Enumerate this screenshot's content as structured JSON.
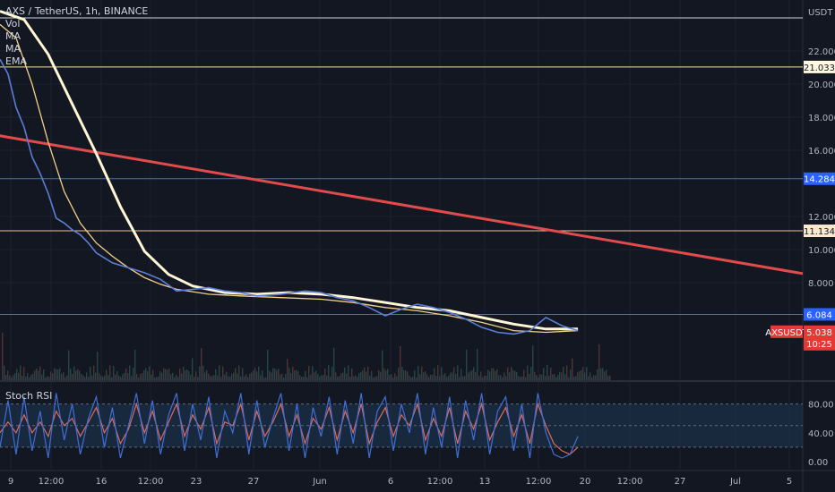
{
  "header": {
    "symbol_title": "AXS / TetherUS, 1h, BINANCE",
    "indicators": [
      "Vol",
      "MA",
      "MA",
      "EMA"
    ],
    "currency": "USDT"
  },
  "lower_pane": {
    "title": "Stoch RSI"
  },
  "colors": {
    "background": "#131722",
    "grid": "#1e222d",
    "price": "#5b7fd6",
    "ma_fast": "#f5d08a",
    "ma_slow": "#fff6d6",
    "trendline": "#e24b4b",
    "stoch_k": "#3f6fd6",
    "stoch_d": "#e06a5a",
    "level_white": "#cfd3dc",
    "level_yellow": "#f5e3a0",
    "level_blue": "#3a6df0",
    "level_peach": "#f0c08a"
  },
  "chart_data": {
    "type": "line",
    "symbol": "AXSUSDT",
    "exchange": "BINANCE",
    "interval": "1h",
    "y_axis": {
      "ticks": [
        "22.000",
        "20.000",
        "18.000",
        "16.000",
        "12.000",
        "10.000",
        "8.000"
      ],
      "tick_values": [
        22,
        20,
        18,
        16,
        12,
        10,
        8
      ]
    },
    "x_axis": {
      "ticks": [
        "9",
        "12:00",
        "16",
        "12:00",
        "23",
        "27",
        "Jun",
        "6",
        "12:00",
        "13",
        "12:00",
        "20",
        "12:00",
        "27",
        "Jul",
        "5"
      ]
    },
    "horizontal_levels": [
      {
        "label": "21.033",
        "value": 21.033,
        "style": "yellow"
      },
      {
        "label": "14.284",
        "value": 14.284,
        "style": "blue"
      },
      {
        "label": "11.134",
        "value": 11.134,
        "style": "peach"
      },
      {
        "label": "6.084",
        "value": 6.084,
        "style": "blue"
      }
    ],
    "top_level_value": 24.0,
    "current_price": {
      "label": "AXSUSDT",
      "value": "5.038",
      "countdown": "10:25",
      "numeric": 5.038
    },
    "trendline": {
      "from": [
        -1,
        25.2
      ],
      "to": [
        1.0,
        8.55
      ]
    },
    "price_series": [
      [
        0.0,
        21.5
      ],
      [
        0.01,
        20.6
      ],
      [
        0.02,
        18.6
      ],
      [
        0.03,
        17.4
      ],
      [
        0.04,
        15.6
      ],
      [
        0.05,
        14.6
      ],
      [
        0.06,
        13.4
      ],
      [
        0.07,
        11.9
      ],
      [
        0.08,
        11.6
      ],
      [
        0.09,
        11.2
      ],
      [
        0.1,
        10.9
      ],
      [
        0.11,
        10.4
      ],
      [
        0.12,
        9.8
      ],
      [
        0.13,
        9.5
      ],
      [
        0.14,
        9.2
      ],
      [
        0.16,
        8.9
      ],
      [
        0.18,
        8.6
      ],
      [
        0.2,
        8.2
      ],
      [
        0.22,
        7.5
      ],
      [
        0.24,
        7.6
      ],
      [
        0.26,
        7.7
      ],
      [
        0.28,
        7.5
      ],
      [
        0.3,
        7.4
      ],
      [
        0.32,
        7.2
      ],
      [
        0.35,
        7.3
      ],
      [
        0.38,
        7.5
      ],
      [
        0.4,
        7.4
      ],
      [
        0.42,
        7.1
      ],
      [
        0.44,
        6.9
      ],
      [
        0.46,
        6.5
      ],
      [
        0.48,
        6.0
      ],
      [
        0.5,
        6.4
      ],
      [
        0.52,
        6.7
      ],
      [
        0.54,
        6.5
      ],
      [
        0.56,
        6.2
      ],
      [
        0.58,
        5.8
      ],
      [
        0.6,
        5.3
      ],
      [
        0.62,
        5.0
      ],
      [
        0.64,
        4.9
      ],
      [
        0.66,
        5.1
      ],
      [
        0.68,
        5.9
      ],
      [
        0.7,
        5.4
      ],
      [
        0.72,
        5.1
      ]
    ],
    "ma_fast_series": [
      [
        0.0,
        23.6
      ],
      [
        0.02,
        22.8
      ],
      [
        0.04,
        20.0
      ],
      [
        0.06,
        16.5
      ],
      [
        0.08,
        13.5
      ],
      [
        0.1,
        11.6
      ],
      [
        0.12,
        10.4
      ],
      [
        0.14,
        9.6
      ],
      [
        0.16,
        8.9
      ],
      [
        0.18,
        8.3
      ],
      [
        0.2,
        7.9
      ],
      [
        0.22,
        7.6
      ],
      [
        0.26,
        7.3
      ],
      [
        0.3,
        7.2
      ],
      [
        0.35,
        7.1
      ],
      [
        0.4,
        7.0
      ],
      [
        0.44,
        6.8
      ],
      [
        0.48,
        6.5
      ],
      [
        0.52,
        6.3
      ],
      [
        0.56,
        6.0
      ],
      [
        0.6,
        5.6
      ],
      [
        0.64,
        5.1
      ],
      [
        0.68,
        5.0
      ],
      [
        0.72,
        5.1
      ]
    ],
    "ma_slow_series": [
      [
        0.0,
        24.4
      ],
      [
        0.03,
        23.9
      ],
      [
        0.06,
        21.8
      ],
      [
        0.09,
        18.8
      ],
      [
        0.12,
        15.8
      ],
      [
        0.15,
        12.6
      ],
      [
        0.18,
        9.9
      ],
      [
        0.21,
        8.5
      ],
      [
        0.24,
        7.8
      ],
      [
        0.28,
        7.4
      ],
      [
        0.32,
        7.3
      ],
      [
        0.36,
        7.4
      ],
      [
        0.4,
        7.3
      ],
      [
        0.44,
        7.1
      ],
      [
        0.48,
        6.8
      ],
      [
        0.52,
        6.5
      ],
      [
        0.56,
        6.3
      ],
      [
        0.6,
        5.9
      ],
      [
        0.64,
        5.5
      ],
      [
        0.68,
        5.2
      ],
      [
        0.72,
        5.2
      ]
    ],
    "stoch_rsi": {
      "ticks": [
        "80.00",
        "40.00",
        "0.00"
      ],
      "tick_values": [
        80,
        40,
        0
      ],
      "upper_band": 80,
      "lower_band": 20,
      "k_series": [
        [
          0.0,
          20
        ],
        [
          0.01,
          85
        ],
        [
          0.02,
          10
        ],
        [
          0.03,
          90
        ],
        [
          0.04,
          15
        ],
        [
          0.05,
          70
        ],
        [
          0.06,
          5
        ],
        [
          0.07,
          95
        ],
        [
          0.08,
          30
        ],
        [
          0.09,
          80
        ],
        [
          0.1,
          10
        ],
        [
          0.11,
          60
        ],
        [
          0.12,
          90
        ],
        [
          0.13,
          20
        ],
        [
          0.14,
          75
        ],
        [
          0.15,
          5
        ],
        [
          0.16,
          50
        ],
        [
          0.17,
          95
        ],
        [
          0.18,
          25
        ],
        [
          0.19,
          85
        ],
        [
          0.2,
          10
        ],
        [
          0.21,
          65
        ],
        [
          0.22,
          95
        ],
        [
          0.23,
          15
        ],
        [
          0.24,
          80
        ],
        [
          0.25,
          30
        ],
        [
          0.26,
          90
        ],
        [
          0.27,
          5
        ],
        [
          0.28,
          70
        ],
        [
          0.29,
          40
        ],
        [
          0.3,
          95
        ],
        [
          0.31,
          10
        ],
        [
          0.32,
          85
        ],
        [
          0.33,
          20
        ],
        [
          0.34,
          60
        ],
        [
          0.35,
          95
        ],
        [
          0.36,
          15
        ],
        [
          0.37,
          80
        ],
        [
          0.38,
          5
        ],
        [
          0.39,
          75
        ],
        [
          0.4,
          35
        ],
        [
          0.41,
          90
        ],
        [
          0.42,
          10
        ],
        [
          0.43,
          85
        ],
        [
          0.44,
          25
        ],
        [
          0.45,
          95
        ],
        [
          0.46,
          5
        ],
        [
          0.47,
          70
        ],
        [
          0.48,
          90
        ],
        [
          0.49,
          15
        ],
        [
          0.5,
          80
        ],
        [
          0.51,
          40
        ],
        [
          0.52,
          95
        ],
        [
          0.53,
          10
        ],
        [
          0.54,
          75
        ],
        [
          0.55,
          20
        ],
        [
          0.56,
          90
        ],
        [
          0.57,
          5
        ],
        [
          0.58,
          85
        ],
        [
          0.59,
          30
        ],
        [
          0.6,
          95
        ],
        [
          0.61,
          10
        ],
        [
          0.62,
          70
        ],
        [
          0.63,
          90
        ],
        [
          0.64,
          15
        ],
        [
          0.65,
          80
        ],
        [
          0.66,
          5
        ],
        [
          0.67,
          95
        ],
        [
          0.68,
          40
        ],
        [
          0.69,
          10
        ],
        [
          0.7,
          5
        ],
        [
          0.71,
          10
        ],
        [
          0.72,
          35
        ]
      ],
      "d_series": [
        [
          0.0,
          40
        ],
        [
          0.01,
          55
        ],
        [
          0.02,
          40
        ],
        [
          0.03,
          65
        ],
        [
          0.04,
          40
        ],
        [
          0.05,
          55
        ],
        [
          0.06,
          35
        ],
        [
          0.07,
          70
        ],
        [
          0.08,
          50
        ],
        [
          0.09,
          60
        ],
        [
          0.1,
          35
        ],
        [
          0.11,
          55
        ],
        [
          0.12,
          75
        ],
        [
          0.13,
          40
        ],
        [
          0.14,
          60
        ],
        [
          0.15,
          25
        ],
        [
          0.16,
          45
        ],
        [
          0.17,
          80
        ],
        [
          0.18,
          40
        ],
        [
          0.19,
          70
        ],
        [
          0.2,
          30
        ],
        [
          0.21,
          55
        ],
        [
          0.22,
          80
        ],
        [
          0.23,
          35
        ],
        [
          0.24,
          65
        ],
        [
          0.25,
          45
        ],
        [
          0.26,
          75
        ],
        [
          0.27,
          25
        ],
        [
          0.28,
          55
        ],
        [
          0.29,
          50
        ],
        [
          0.3,
          80
        ],
        [
          0.31,
          30
        ],
        [
          0.32,
          70
        ],
        [
          0.33,
          35
        ],
        [
          0.34,
          55
        ],
        [
          0.35,
          80
        ],
        [
          0.36,
          35
        ],
        [
          0.37,
          65
        ],
        [
          0.38,
          25
        ],
        [
          0.39,
          60
        ],
        [
          0.4,
          45
        ],
        [
          0.41,
          75
        ],
        [
          0.42,
          30
        ],
        [
          0.43,
          70
        ],
        [
          0.44,
          40
        ],
        [
          0.45,
          80
        ],
        [
          0.46,
          25
        ],
        [
          0.47,
          55
        ],
        [
          0.48,
          75
        ],
        [
          0.49,
          35
        ],
        [
          0.5,
          65
        ],
        [
          0.51,
          50
        ],
        [
          0.52,
          80
        ],
        [
          0.53,
          30
        ],
        [
          0.54,
          60
        ],
        [
          0.55,
          35
        ],
        [
          0.56,
          75
        ],
        [
          0.57,
          25
        ],
        [
          0.58,
          70
        ],
        [
          0.59,
          45
        ],
        [
          0.6,
          80
        ],
        [
          0.61,
          30
        ],
        [
          0.62,
          55
        ],
        [
          0.63,
          75
        ],
        [
          0.64,
          35
        ],
        [
          0.65,
          65
        ],
        [
          0.66,
          25
        ],
        [
          0.67,
          80
        ],
        [
          0.68,
          50
        ],
        [
          0.69,
          25
        ],
        [
          0.7,
          15
        ],
        [
          0.71,
          10
        ],
        [
          0.72,
          20
        ]
      ]
    }
  }
}
